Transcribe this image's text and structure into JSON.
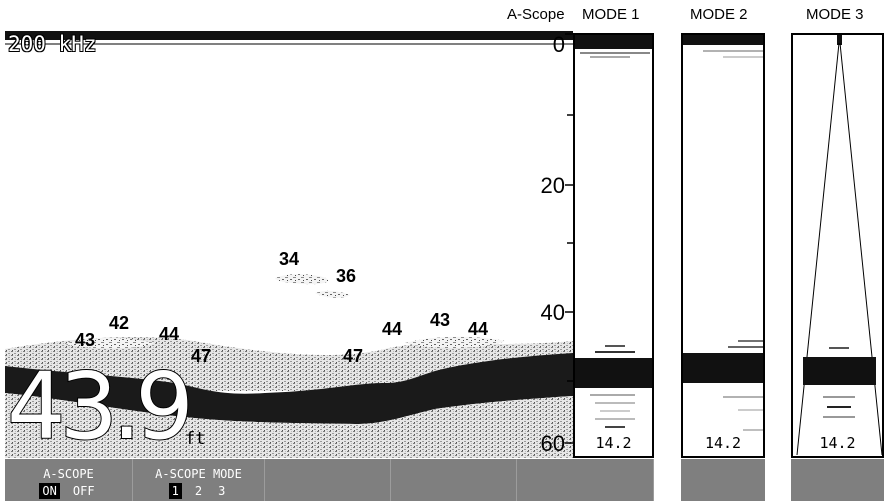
{
  "header": {
    "ascope_label": "A-Scope",
    "mode1_label": "MODE 1",
    "mode2_label": "MODE 2",
    "mode3_label": "MODE 3"
  },
  "main": {
    "frequency": "200 kHz",
    "depth_value": "43.9",
    "depth_unit": "ft",
    "scale": [
      "0",
      "20",
      "40",
      "60"
    ],
    "fish_marks": [
      "34",
      "36",
      "42",
      "43",
      "44",
      "47",
      "47",
      "44",
      "43",
      "44"
    ]
  },
  "scopes": {
    "mode1_value": "14.2",
    "mode2_value": "14.2",
    "mode3_value": "14.2"
  },
  "softkeys": {
    "ascope_title": "A-SCOPE",
    "ascope_on": "ON",
    "ascope_off": "OFF",
    "mode_title": "A-SCOPE MODE",
    "mode_1": "1",
    "mode_2": "2",
    "mode_3": "3"
  },
  "colors": {
    "softkey_bg": "#7f7f7f",
    "selected_bg": "#000000",
    "bottom_band": "#1a1a1a"
  }
}
